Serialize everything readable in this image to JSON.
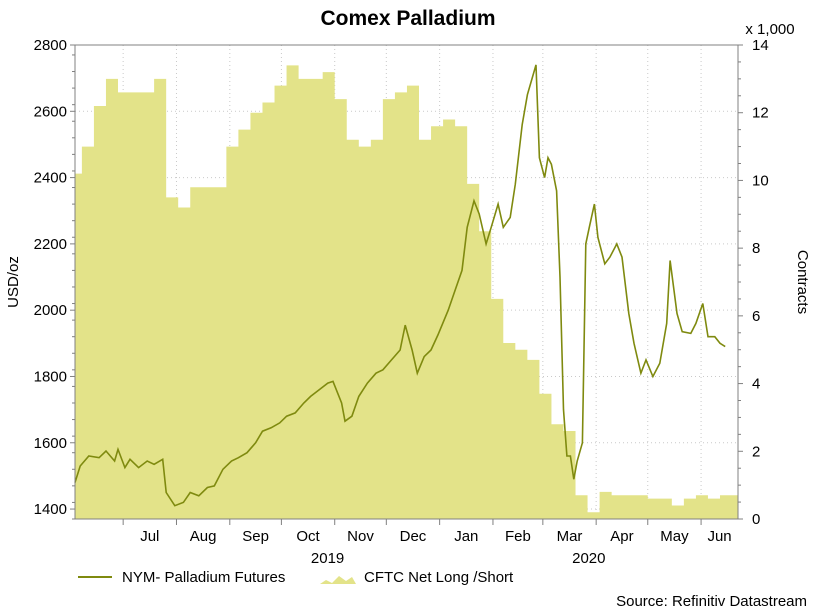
{
  "chart_data": {
    "type": "line",
    "title": "Comex Palladium",
    "ylabel_left": "USD/oz",
    "ylabel_right": "Contracts",
    "right_multiplier": "x 1,000",
    "ylim_left": [
      1370,
      2800
    ],
    "ylim_right": [
      0,
      14
    ],
    "yticks_left": [
      "1400",
      "1600",
      "1800",
      "2000",
      "2200",
      "2400",
      "2600",
      "2800"
    ],
    "yticks_right": [
      "0",
      "2",
      "4",
      "6",
      "8",
      "10",
      "12",
      "14"
    ],
    "months": [
      "Jul",
      "Aug",
      "Sep",
      "Oct",
      "Nov",
      "Dec",
      "Jan",
      "Feb",
      "Mar",
      "Apr",
      "May",
      "Jun"
    ],
    "years": [
      "2019",
      "2020"
    ],
    "grid": true,
    "legend_position": "bottom",
    "x_start": "2019-06-03",
    "series": [
      {
        "name": "NYM- Palladium Futures",
        "type": "line",
        "axis": "left",
        "color": "#7f8a0f",
        "points": [
          [
            "2019-06-03",
            1480
          ],
          [
            "2019-06-06",
            1530
          ],
          [
            "2019-06-11",
            1560
          ],
          [
            "2019-06-17",
            1555
          ],
          [
            "2019-06-21",
            1575
          ],
          [
            "2019-06-26",
            1545
          ],
          [
            "2019-06-28",
            1580
          ],
          [
            "2019-07-02",
            1525
          ],
          [
            "2019-07-05",
            1550
          ],
          [
            "2019-07-10",
            1525
          ],
          [
            "2019-07-15",
            1545
          ],
          [
            "2019-07-19",
            1535
          ],
          [
            "2019-07-24",
            1550
          ],
          [
            "2019-07-26",
            1450
          ],
          [
            "2019-07-31",
            1410
          ],
          [
            "2019-08-05",
            1420
          ],
          [
            "2019-08-09",
            1450
          ],
          [
            "2019-08-14",
            1440
          ],
          [
            "2019-08-19",
            1465
          ],
          [
            "2019-08-23",
            1470
          ],
          [
            "2019-08-28",
            1520
          ],
          [
            "2019-09-02",
            1545
          ],
          [
            "2019-09-06",
            1555
          ],
          [
            "2019-09-11",
            1570
          ],
          [
            "2019-09-16",
            1600
          ],
          [
            "2019-09-20",
            1635
          ],
          [
            "2019-09-25",
            1645
          ],
          [
            "2019-09-30",
            1660
          ],
          [
            "2019-10-04",
            1680
          ],
          [
            "2019-10-09",
            1690
          ],
          [
            "2019-10-14",
            1720
          ],
          [
            "2019-10-18",
            1740
          ],
          [
            "2019-10-23",
            1760
          ],
          [
            "2019-10-28",
            1780
          ],
          [
            "2019-10-31",
            1785
          ],
          [
            "2019-11-05",
            1720
          ],
          [
            "2019-11-07",
            1665
          ],
          [
            "2019-11-11",
            1680
          ],
          [
            "2019-11-15",
            1740
          ],
          [
            "2019-11-20",
            1780
          ],
          [
            "2019-11-25",
            1810
          ],
          [
            "2019-11-29",
            1820
          ],
          [
            "2019-12-04",
            1850
          ],
          [
            "2019-12-09",
            1880
          ],
          [
            "2019-12-12",
            1955
          ],
          [
            "2019-12-16",
            1880
          ],
          [
            "2019-12-19",
            1810
          ],
          [
            "2019-12-23",
            1860
          ],
          [
            "2019-12-27",
            1880
          ],
          [
            "2019-12-31",
            1925
          ],
          [
            "2020-01-06",
            2000
          ],
          [
            "2020-01-10",
            2060
          ],
          [
            "2020-01-14",
            2120
          ],
          [
            "2020-01-17",
            2250
          ],
          [
            "2020-01-21",
            2330
          ],
          [
            "2020-01-24",
            2290
          ],
          [
            "2020-01-28",
            2200
          ],
          [
            "2020-01-31",
            2250
          ],
          [
            "2020-02-04",
            2320
          ],
          [
            "2020-02-07",
            2250
          ],
          [
            "2020-02-11",
            2280
          ],
          [
            "2020-02-14",
            2380
          ],
          [
            "2020-02-18",
            2560
          ],
          [
            "2020-02-21",
            2650
          ],
          [
            "2020-02-26",
            2740
          ],
          [
            "2020-02-28",
            2460
          ],
          [
            "2020-03-02",
            2400
          ],
          [
            "2020-03-04",
            2460
          ],
          [
            "2020-03-06",
            2440
          ],
          [
            "2020-03-09",
            2360
          ],
          [
            "2020-03-11",
            2100
          ],
          [
            "2020-03-13",
            1700
          ],
          [
            "2020-03-15",
            1560
          ],
          [
            "2020-03-17",
            1560
          ],
          [
            "2020-03-19",
            1490
          ],
          [
            "2020-03-21",
            1545
          ],
          [
            "2020-03-24",
            1600
          ],
          [
            "2020-03-26",
            2200
          ],
          [
            "2020-03-28",
            2250
          ],
          [
            "2020-03-31",
            2320
          ],
          [
            "2020-04-02",
            2220
          ],
          [
            "2020-04-06",
            2140
          ],
          [
            "2020-04-09",
            2160
          ],
          [
            "2020-04-13",
            2200
          ],
          [
            "2020-04-16",
            2160
          ],
          [
            "2020-04-20",
            1990
          ],
          [
            "2020-04-23",
            1900
          ],
          [
            "2020-04-27",
            1810
          ],
          [
            "2020-04-30",
            1850
          ],
          [
            "2020-05-04",
            1800
          ],
          [
            "2020-05-08",
            1840
          ],
          [
            "2020-05-12",
            1960
          ],
          [
            "2020-05-14",
            2150
          ],
          [
            "2020-05-18",
            1990
          ],
          [
            "2020-05-21",
            1935
          ],
          [
            "2020-05-26",
            1930
          ],
          [
            "2020-05-29",
            1960
          ],
          [
            "2020-06-02",
            2020
          ],
          [
            "2020-06-05",
            1920
          ],
          [
            "2020-06-09",
            1920
          ],
          [
            "2020-06-12",
            1900
          ],
          [
            "2020-06-15",
            1890
          ]
        ]
      },
      {
        "name": "CFTC Net Long /Short",
        "type": "area",
        "axis": "right",
        "color": "#e3e389",
        "points": [
          [
            "2019-06-03",
            10.2
          ],
          [
            "2019-06-07",
            11.0
          ],
          [
            "2019-06-14",
            12.2
          ],
          [
            "2019-06-21",
            13.0
          ],
          [
            "2019-06-28",
            12.6
          ],
          [
            "2019-07-05",
            12.6
          ],
          [
            "2019-07-12",
            12.6
          ],
          [
            "2019-07-19",
            13.0
          ],
          [
            "2019-07-26",
            9.5
          ],
          [
            "2019-08-02",
            9.2
          ],
          [
            "2019-08-09",
            9.8
          ],
          [
            "2019-08-16",
            9.8
          ],
          [
            "2019-08-23",
            9.8
          ],
          [
            "2019-08-30",
            11.0
          ],
          [
            "2019-09-06",
            11.5
          ],
          [
            "2019-09-13",
            12.0
          ],
          [
            "2019-09-20",
            12.3
          ],
          [
            "2019-09-27",
            12.8
          ],
          [
            "2019-10-04",
            13.4
          ],
          [
            "2019-10-11",
            13.0
          ],
          [
            "2019-10-18",
            13.0
          ],
          [
            "2019-10-25",
            13.2
          ],
          [
            "2019-11-01",
            12.4
          ],
          [
            "2019-11-08",
            11.2
          ],
          [
            "2019-11-15",
            11.0
          ],
          [
            "2019-11-22",
            11.2
          ],
          [
            "2019-11-29",
            12.4
          ],
          [
            "2019-12-06",
            12.6
          ],
          [
            "2019-12-13",
            12.8
          ],
          [
            "2019-12-20",
            11.2
          ],
          [
            "2019-12-27",
            11.6
          ],
          [
            "2020-01-03",
            11.8
          ],
          [
            "2020-01-10",
            11.6
          ],
          [
            "2020-01-17",
            9.9
          ],
          [
            "2020-01-24",
            8.5
          ],
          [
            "2020-01-31",
            6.5
          ],
          [
            "2020-02-07",
            5.2
          ],
          [
            "2020-02-14",
            5.0
          ],
          [
            "2020-02-21",
            4.7
          ],
          [
            "2020-02-28",
            3.7
          ],
          [
            "2020-03-06",
            2.8
          ],
          [
            "2020-03-13",
            2.6
          ],
          [
            "2020-03-20",
            0.7
          ],
          [
            "2020-03-27",
            0.2
          ],
          [
            "2020-04-03",
            0.8
          ],
          [
            "2020-04-10",
            0.7
          ],
          [
            "2020-04-17",
            0.7
          ],
          [
            "2020-04-24",
            0.7
          ],
          [
            "2020-05-01",
            0.6
          ],
          [
            "2020-05-08",
            0.6
          ],
          [
            "2020-05-15",
            0.4
          ],
          [
            "2020-05-22",
            0.6
          ],
          [
            "2020-05-29",
            0.7
          ],
          [
            "2020-06-05",
            0.6
          ],
          [
            "2020-06-12",
            0.7
          ],
          [
            "2020-06-19",
            0.7
          ]
        ]
      }
    ],
    "source": "Source: Refinitiv Datastream"
  }
}
